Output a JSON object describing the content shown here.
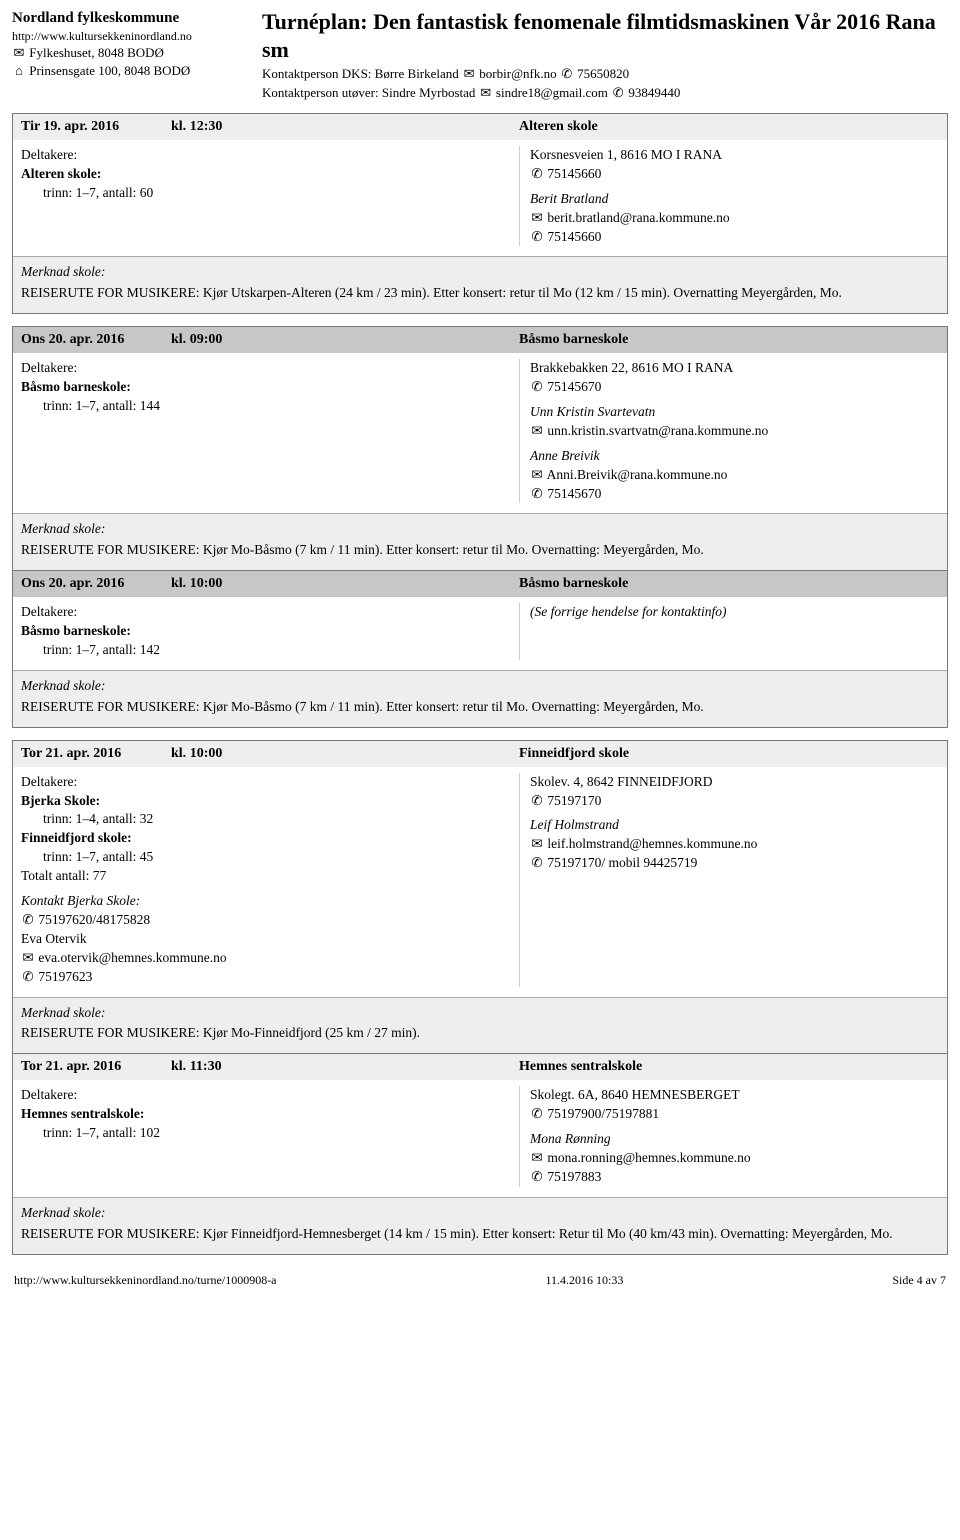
{
  "org": {
    "name": "Nordland fylkeskommune",
    "url": "http://www.kultursekkeninordland.no",
    "postal": "Fylkeshuset, 8048 BODØ",
    "street": "Prinsensgate 100, 8048 BODØ"
  },
  "title": "Turnéplan: Den fantastisk fenomenale filmtidsmaskinen Vår 2016 Rana sm",
  "contacts": {
    "dks_label": "Kontaktperson DKS:",
    "dks_name": "Børre Birkeland",
    "dks_email": "borbir@nfk.no",
    "dks_phone": "75650820",
    "performer_label": "Kontaktperson utøver:",
    "performer_name": "Sindre Myrbostad",
    "performer_email": "sindre18@gmail.com",
    "performer_phone": "93849440"
  },
  "labels": {
    "deltakere": "Deltakere:",
    "merknad": "Merknad skole:",
    "time_prefix": "kl.",
    "see_prev": "(Se forrige hendelse for kontaktinfo)"
  },
  "events": [
    {
      "header_style": "light",
      "date": "Tir 19. apr. 2016",
      "time": "12:30",
      "venue": "Alteren skole",
      "left": {
        "schools": [
          {
            "name": "Alteren skole:",
            "detail": "trinn: 1–7, antall: 60"
          }
        ]
      },
      "right": {
        "address": "Korsnesveien 1, 8616 MO I RANA",
        "phone": "75145660",
        "contacts": [
          {
            "name": "Berit Bratland",
            "email": "berit.bratland@rana.kommune.no",
            "phone": "75145660"
          }
        ]
      },
      "merknad": "REISERUTE FOR MUSIKERE: Kjør Utskarpen-Alteren (24 km / 23 min). Etter konsert: retur til Mo (12 km / 15 min). Overnatting Meyergården, Mo."
    }
  ],
  "group2": [
    {
      "header_style": "dark",
      "date": "Ons 20. apr. 2016",
      "time": "09:00",
      "venue": "Båsmo barneskole",
      "left": {
        "schools": [
          {
            "name": "Båsmo barneskole:",
            "detail": "trinn: 1–7, antall: 144"
          }
        ]
      },
      "right": {
        "address": "Brakkebakken 22, 8616 MO I RANA",
        "phone": "75145670",
        "contacts": [
          {
            "name": "Unn Kristin Svartevatn",
            "email": "unn.kristin.svartvatn@rana.kommune.no"
          },
          {
            "name": "Anne Breivik",
            "email": "Anni.Breivik@rana.kommune.no",
            "phone": "75145670"
          }
        ]
      },
      "merknad": "REISERUTE FOR MUSIKERE:  Kjør Mo-Båsmo (7 km / 11 min). Etter konsert: retur til Mo. Overnatting: Meyergården, Mo."
    },
    {
      "header_style": "dark",
      "date": "Ons 20. apr. 2016",
      "time": "10:00",
      "venue": "Båsmo barneskole",
      "left": {
        "schools": [
          {
            "name": "Båsmo barneskole:",
            "detail": "trinn: 1–7, antall: 142"
          }
        ]
      },
      "right_ref": true,
      "merknad": "REISERUTE FOR MUSIKERE:  Kjør Mo-Båsmo (7 km / 11 min). Etter konsert: retur til Mo. Overnatting: Meyergården, Mo."
    }
  ],
  "group3": [
    {
      "header_style": "light",
      "date": "Tor 21. apr. 2016",
      "time": "10:00",
      "venue": "Finneidfjord skole",
      "left": {
        "schools": [
          {
            "name": "Bjerka Skole:",
            "detail": "trinn: 1–4, antall: 32"
          },
          {
            "name": "Finneidfjord skole:",
            "detail": "trinn: 1–7, antall: 45"
          }
        ],
        "total": "Totalt antall: 77",
        "extra_contact": {
          "title": "Kontakt Bjerka Skole:",
          "phone1": "75197620/48175828",
          "name": "Eva Otervik",
          "email": "eva.otervik@hemnes.kommune.no",
          "phone2": "75197623"
        }
      },
      "right": {
        "address": "Skolev. 4, 8642 FINNEIDFJORD",
        "phone": "75197170",
        "contacts": [
          {
            "name": "Leif Holmstrand",
            "email": "leif.holmstrand@hemnes.kommune.no",
            "phone": "75197170/ mobil 94425719"
          }
        ]
      },
      "merknad": "REISERUTE FOR MUSIKERE: Kjør Mo-Finneidfjord (25 km / 27 min)."
    },
    {
      "header_style": "light",
      "date": "Tor 21. apr. 2016",
      "time": "11:30",
      "venue": "Hemnes sentralskole",
      "left": {
        "schools": [
          {
            "name": "Hemnes sentralskole:",
            "detail": "trinn: 1–7, antall: 102"
          }
        ]
      },
      "right": {
        "address": "Skolegt. 6A, 8640 HEMNESBERGET",
        "phone": "75197900/75197881",
        "contacts": [
          {
            "name": "Mona Rønning",
            "email": "mona.ronning@hemnes.kommune.no",
            "phone": "75197883"
          }
        ]
      },
      "merknad": "REISERUTE FOR MUSIKERE: Kjør Finneidfjord-Hemnesberget (14 km / 15 min). Etter konsert: Retur til Mo (40 km/43 min). Overnatting: Meyergården, Mo."
    }
  ],
  "footer": {
    "left": "http://www.kultursekkeninordland.no/turne/1000908-a",
    "center": "11.4.2016 10:33",
    "right": "Side 4 av 7"
  },
  "symbols": {
    "mail": "✉",
    "home": "⌂",
    "phone": "✆"
  }
}
